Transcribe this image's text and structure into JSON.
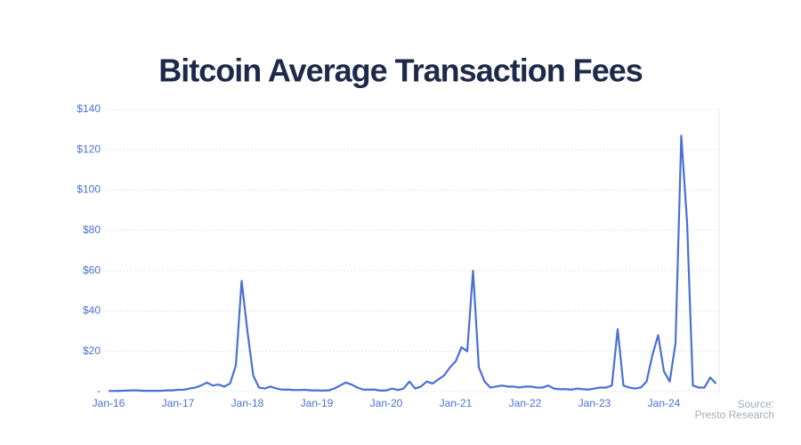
{
  "chart_data": {
    "type": "line",
    "title": "Bitcoin Average Transaction Fees",
    "x": [
      "2016-01",
      "2016-02",
      "2016-03",
      "2016-04",
      "2016-05",
      "2016-06",
      "2016-07",
      "2016-08",
      "2016-09",
      "2016-10",
      "2016-11",
      "2016-12",
      "2017-01",
      "2017-02",
      "2017-03",
      "2017-04",
      "2017-05",
      "2017-06",
      "2017-07",
      "2017-08",
      "2017-09",
      "2017-10",
      "2017-11",
      "2017-12",
      "2018-01",
      "2018-02",
      "2018-03",
      "2018-04",
      "2018-05",
      "2018-06",
      "2018-07",
      "2018-08",
      "2018-09",
      "2018-10",
      "2018-11",
      "2018-12",
      "2019-01",
      "2019-02",
      "2019-03",
      "2019-04",
      "2019-05",
      "2019-06",
      "2019-07",
      "2019-08",
      "2019-09",
      "2019-10",
      "2019-11",
      "2019-12",
      "2020-01",
      "2020-02",
      "2020-03",
      "2020-04",
      "2020-05",
      "2020-06",
      "2020-07",
      "2020-08",
      "2020-09",
      "2020-10",
      "2020-11",
      "2020-12",
      "2021-01",
      "2021-02",
      "2021-03",
      "2021-04",
      "2021-05",
      "2021-06",
      "2021-07",
      "2021-08",
      "2021-09",
      "2021-10",
      "2021-11",
      "2021-12",
      "2022-01",
      "2022-02",
      "2022-03",
      "2022-04",
      "2022-05",
      "2022-06",
      "2022-07",
      "2022-08",
      "2022-09",
      "2022-10",
      "2022-11",
      "2022-12",
      "2023-01",
      "2023-02",
      "2023-03",
      "2023-04",
      "2023-05",
      "2023-06",
      "2023-07",
      "2023-08",
      "2023-09",
      "2023-10",
      "2023-11",
      "2023-12",
      "2024-01",
      "2024-02",
      "2024-03",
      "2024-04",
      "2024-05",
      "2024-06",
      "2024-07",
      "2024-08",
      "2024-09",
      "2024-10"
    ],
    "series": [
      {
        "name": "Average Transaction Fee",
        "color": "#4a70d4",
        "values": [
          0.3,
          0.3,
          0.4,
          0.5,
          0.6,
          0.6,
          0.4,
          0.4,
          0.4,
          0.4,
          0.6,
          0.6,
          0.9,
          0.9,
          1.5,
          2,
          3,
          4.5,
          3,
          3.5,
          2.5,
          4,
          13,
          55,
          30,
          8,
          2,
          1.5,
          2.5,
          1.5,
          1,
          1,
          0.8,
          0.8,
          0.9,
          0.6,
          0.6,
          0.5,
          0.6,
          1.5,
          3,
          4.5,
          3.5,
          2,
          1,
          1,
          1,
          0.5,
          0.6,
          1.5,
          0.8,
          1.5,
          5,
          1.5,
          2.5,
          5,
          4,
          6,
          8,
          12,
          15,
          22,
          20,
          60,
          12,
          5,
          2,
          2.5,
          3,
          2.5,
          2.5,
          2,
          2.5,
          2.5,
          2,
          2,
          3,
          1.5,
          1.2,
          1.2,
          1,
          1.5,
          1.2,
          1,
          1.5,
          2,
          2,
          3,
          31,
          3,
          2,
          1.5,
          2,
          5,
          18,
          28,
          10,
          5,
          24,
          127,
          84,
          3,
          2,
          2,
          7,
          4
        ]
      }
    ],
    "xlim": [
      "2016-01",
      "2024-10"
    ],
    "xticks": [
      {
        "value": "2016-01",
        "label": "Jan-16"
      },
      {
        "value": "2017-01",
        "label": "Jan-17"
      },
      {
        "value": "2018-01",
        "label": "Jan-18"
      },
      {
        "value": "2019-01",
        "label": "Jan-19"
      },
      {
        "value": "2020-01",
        "label": "Jan-20"
      },
      {
        "value": "2021-01",
        "label": "Jan-21"
      },
      {
        "value": "2022-01",
        "label": "Jan-22"
      },
      {
        "value": "2023-01",
        "label": "Jan-23"
      },
      {
        "value": "2024-01",
        "label": "Jan-24"
      }
    ],
    "ylim": [
      0,
      140
    ],
    "yticks": [
      {
        "value": 0,
        "label": "-"
      },
      {
        "value": 20,
        "label": "$20"
      },
      {
        "value": 40,
        "label": "$40"
      },
      {
        "value": 60,
        "label": "$60"
      },
      {
        "value": 80,
        "label": "$80"
      },
      {
        "value": 100,
        "label": "$100"
      },
      {
        "value": 120,
        "label": "$120"
      },
      {
        "value": 140,
        "label": "$140"
      }
    ],
    "grid": true,
    "annotations": [
      "Source:",
      "Presto Research"
    ]
  }
}
